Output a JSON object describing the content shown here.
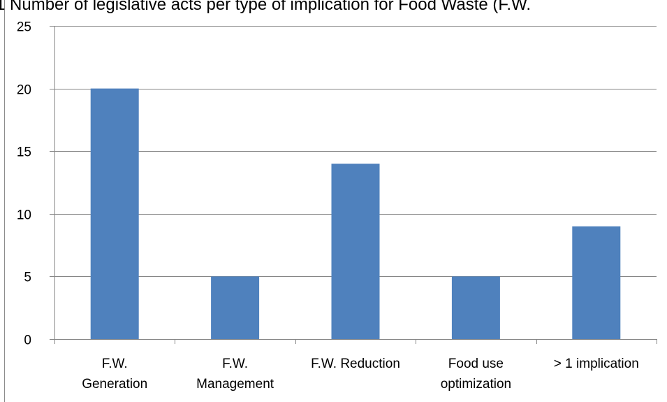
{
  "chart_data": {
    "type": "bar",
    "title": "1 Number of legislative acts per type of implication for Food Waste (F.W.",
    "categories": [
      [
        "F.W.",
        "Generation"
      ],
      [
        "F.W.",
        "Management"
      ],
      [
        "F.W. Reduction"
      ],
      [
        "Food use",
        "optimization"
      ],
      [
        "> 1 implication"
      ]
    ],
    "values": [
      20,
      5,
      14,
      5,
      9
    ],
    "y_ticks": [
      "0",
      "5",
      "10",
      "15",
      "20",
      "25"
    ],
    "ylim": [
      0,
      25
    ],
    "grid": true,
    "bar_color": "#4f81bd",
    "grid_color": "#868686"
  }
}
